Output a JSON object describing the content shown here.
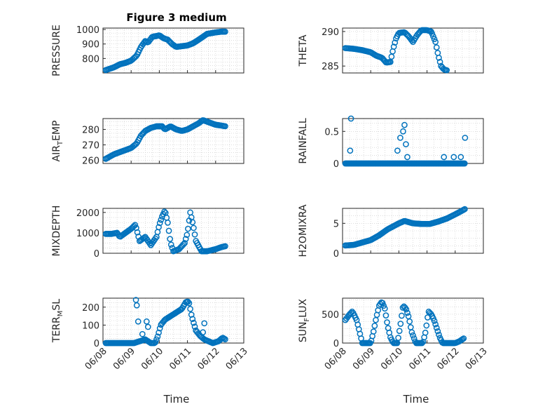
{
  "figure": {
    "title": "Figure 3 medium"
  },
  "colors": {
    "marker": "#0072bd",
    "axes": "#262626",
    "grid": "#c8c8c8"
  },
  "chart_data": [
    {
      "type": "scatter",
      "title": "Figure 3 medium",
      "ylabel": "PRESSURE",
      "ylabel_sub": "",
      "ylim": [
        700,
        1010
      ],
      "yticks": [
        800,
        900,
        1000
      ],
      "ytick_labels": [
        "800",
        "900",
        "1000"
      ],
      "xlim": [
        0,
        5
      ],
      "xticks": [
        0,
        1,
        2,
        3,
        4,
        5
      ],
      "xtick_labels": [
        "06/08",
        "06/09",
        "06/10",
        "06/11",
        "06/12",
        "06/13"
      ],
      "xlabel": "",
      "grid": true,
      "anchors": [
        [
          0.1,
          720
        ],
        [
          0.4,
          740
        ],
        [
          0.6,
          760
        ],
        [
          0.8,
          770
        ],
        [
          1.0,
          785
        ],
        [
          1.2,
          820
        ],
        [
          1.35,
          880
        ],
        [
          1.5,
          920
        ],
        [
          1.6,
          910
        ],
        [
          1.75,
          950
        ],
        [
          1.9,
          955
        ],
        [
          2.0,
          960
        ],
        [
          2.15,
          940
        ],
        [
          2.3,
          930
        ],
        [
          2.45,
          900
        ],
        [
          2.6,
          880
        ],
        [
          2.8,
          885
        ],
        [
          3.0,
          890
        ],
        [
          3.2,
          905
        ],
        [
          3.4,
          930
        ],
        [
          3.55,
          950
        ],
        [
          3.7,
          970
        ],
        [
          3.85,
          975
        ],
        [
          4.0,
          980
        ],
        [
          4.2,
          985
        ],
        [
          4.35,
          985
        ]
      ]
    },
    {
      "type": "scatter",
      "title": "",
      "ylabel": "THETA",
      "ylabel_sub": "",
      "ylim": [
        284,
        290.5
      ],
      "yticks": [
        285,
        290
      ],
      "ytick_labels": [
        "285",
        "290"
      ],
      "xlim": [
        0,
        5
      ],
      "xticks": [
        0,
        1,
        2,
        3,
        4,
        5
      ],
      "xtick_labels": [
        "06/08",
        "06/09",
        "06/10",
        "06/11",
        "06/12",
        "06/13"
      ],
      "xlabel": "",
      "grid": true,
      "anchors": [
        [
          0.1,
          287.6
        ],
        [
          0.4,
          287.5
        ],
        [
          0.7,
          287.3
        ],
        [
          1.0,
          287.0
        ],
        [
          1.2,
          286.5
        ],
        [
          1.4,
          286.2
        ],
        [
          1.55,
          285.5
        ],
        [
          1.7,
          285.6
        ],
        [
          1.8,
          287.5
        ],
        [
          1.9,
          289.0
        ],
        [
          2.0,
          289.8
        ],
        [
          2.2,
          289.9
        ],
        [
          2.35,
          289.3
        ],
        [
          2.5,
          288.5
        ],
        [
          2.65,
          289.5
        ],
        [
          2.8,
          290.2
        ],
        [
          3.0,
          290.2
        ],
        [
          3.15,
          290.0
        ],
        [
          3.3,
          288.5
        ],
        [
          3.4,
          286.5
        ],
        [
          3.5,
          285.0
        ],
        [
          3.6,
          284.5
        ],
        [
          3.7,
          284.4
        ]
      ]
    },
    {
      "type": "scatter",
      "title": "",
      "ylabel": "AIR",
      "ylabel_sub": "T",
      "ylabel_rest": "EMP",
      "ylim": [
        258,
        287
      ],
      "yticks": [
        260,
        270,
        280
      ],
      "ytick_labels": [
        "260",
        "270",
        "280"
      ],
      "xlim": [
        0,
        5
      ],
      "xticks": [
        0,
        1,
        2,
        3,
        4,
        5
      ],
      "xtick_labels": [
        "06/08",
        "06/09",
        "06/10",
        "06/11",
        "06/12",
        "06/13"
      ],
      "xlabel": "",
      "grid": true,
      "anchors": [
        [
          0.1,
          261
        ],
        [
          0.4,
          264
        ],
        [
          0.7,
          266
        ],
        [
          1.0,
          268
        ],
        [
          1.2,
          271
        ],
        [
          1.35,
          276
        ],
        [
          1.5,
          279
        ],
        [
          1.7,
          281
        ],
        [
          1.9,
          282
        ],
        [
          2.1,
          282
        ],
        [
          2.2,
          280
        ],
        [
          2.4,
          282
        ],
        [
          2.6,
          280
        ],
        [
          2.8,
          279
        ],
        [
          3.0,
          280
        ],
        [
          3.2,
          282
        ],
        [
          3.4,
          284
        ],
        [
          3.55,
          286
        ],
        [
          3.7,
          285
        ],
        [
          3.85,
          284
        ],
        [
          4.0,
          283
        ],
        [
          4.2,
          282.5
        ],
        [
          4.35,
          282
        ]
      ]
    },
    {
      "type": "scatter",
      "title": "",
      "ylabel": "RAINFALL",
      "ylabel_sub": "",
      "ylim": [
        0,
        0.7
      ],
      "yticks": [
        0,
        0.5
      ],
      "ytick_labels": [
        "0",
        "0.5"
      ],
      "xlim": [
        0,
        5
      ],
      "xticks": [
        0,
        1,
        2,
        3,
        4,
        5
      ],
      "xtick_labels": [
        "06/08",
        "06/09",
        "06/10",
        "06/11",
        "06/12",
        "06/13"
      ],
      "xlabel": "",
      "grid": true,
      "spikes": [
        [
          0.3,
          0.7
        ],
        [
          0.27,
          0.2
        ],
        [
          1.95,
          0.2
        ],
        [
          2.05,
          0.4
        ],
        [
          2.15,
          0.5
        ],
        [
          2.2,
          0.6
        ],
        [
          2.25,
          0.3
        ],
        [
          2.3,
          0.1
        ],
        [
          3.6,
          0.1
        ],
        [
          3.95,
          0.1
        ],
        [
          4.2,
          0.1
        ],
        [
          4.35,
          0.4
        ]
      ]
    },
    {
      "type": "scatter",
      "title": "",
      "ylabel": "MIXDEPTH",
      "ylabel_sub": "",
      "ylim": [
        0,
        2200
      ],
      "yticks": [
        0,
        1000,
        2000
      ],
      "ytick_labels": [
        "0",
        "1000",
        "2000"
      ],
      "xlim": [
        0,
        5
      ],
      "xticks": [
        0,
        1,
        2,
        3,
        4,
        5
      ],
      "xtick_labels": [
        "06/08",
        "06/09",
        "06/10",
        "06/11",
        "06/12",
        "06/13"
      ],
      "xlabel": "",
      "grid": true,
      "anchors": [
        [
          0.1,
          950
        ],
        [
          0.3,
          950
        ],
        [
          0.5,
          1000
        ],
        [
          0.6,
          800
        ],
        [
          0.8,
          1000
        ],
        [
          1.0,
          1200
        ],
        [
          1.15,
          1400
        ],
        [
          1.3,
          600
        ],
        [
          1.5,
          800
        ],
        [
          1.7,
          400
        ],
        [
          1.9,
          800
        ],
        [
          2.0,
          1400
        ],
        [
          2.1,
          1800
        ],
        [
          2.2,
          2100
        ],
        [
          2.3,
          1500
        ],
        [
          2.4,
          500
        ],
        [
          2.5,
          100
        ],
        [
          2.7,
          200
        ],
        [
          2.9,
          500
        ],
        [
          3.0,
          1000
        ],
        [
          3.1,
          2000
        ],
        [
          3.2,
          1400
        ],
        [
          3.3,
          600
        ],
        [
          3.5,
          100
        ],
        [
          3.7,
          100
        ],
        [
          4.0,
          200
        ],
        [
          4.2,
          300
        ],
        [
          4.35,
          350
        ]
      ]
    },
    {
      "type": "scatter",
      "title": "",
      "ylabel": "H2OMIXRA",
      "ylabel_sub": "",
      "ylim": [
        0,
        7.5
      ],
      "yticks": [
        0,
        5
      ],
      "ytick_labels": [
        "0",
        "5"
      ],
      "xlim": [
        0,
        5
      ],
      "xticks": [
        0,
        1,
        2,
        3,
        4,
        5
      ],
      "xtick_labels": [
        "06/08",
        "06/09",
        "06/10",
        "06/11",
        "06/12",
        "06/13"
      ],
      "xlabel": "",
      "grid": true,
      "anchors": [
        [
          0.1,
          1.3
        ],
        [
          0.4,
          1.4
        ],
        [
          0.7,
          1.8
        ],
        [
          1.0,
          2.2
        ],
        [
          1.3,
          3.0
        ],
        [
          1.6,
          4.0
        ],
        [
          1.8,
          4.5
        ],
        [
          2.0,
          5.0
        ],
        [
          2.2,
          5.4
        ],
        [
          2.5,
          5.0
        ],
        [
          2.8,
          4.9
        ],
        [
          3.1,
          4.9
        ],
        [
          3.4,
          5.3
        ],
        [
          3.7,
          5.8
        ],
        [
          4.0,
          6.5
        ],
        [
          4.2,
          7.0
        ],
        [
          4.35,
          7.4
        ]
      ]
    },
    {
      "type": "scatter",
      "title": "",
      "ylabel": "TERR",
      "ylabel_sub": "M",
      "ylabel_rest": "SL",
      "ylim": [
        0,
        250
      ],
      "yticks": [
        0,
        100,
        200
      ],
      "ytick_labels": [
        "0",
        "100",
        "200"
      ],
      "xlim": [
        0,
        5
      ],
      "xticks": [
        0,
        1,
        2,
        3,
        4,
        5
      ],
      "xtick_labels": [
        "06/08",
        "06/09",
        "06/10",
        "06/11",
        "06/12",
        "06/13"
      ],
      "xlabel": "Time",
      "grid": true,
      "anchors": [
        [
          0.1,
          0
        ],
        [
          0.6,
          0
        ],
        [
          1.1,
          0
        ],
        [
          1.3,
          10
        ],
        [
          1.5,
          20
        ],
        [
          1.7,
          0
        ],
        [
          1.85,
          0
        ],
        [
          1.95,
          40
        ],
        [
          2.05,
          100
        ],
        [
          2.2,
          130
        ],
        [
          2.4,
          150
        ],
        [
          2.6,
          170
        ],
        [
          2.8,
          190
        ],
        [
          2.95,
          230
        ],
        [
          3.05,
          230
        ],
        [
          3.15,
          150
        ],
        [
          3.3,
          70
        ],
        [
          3.45,
          40
        ],
        [
          3.6,
          20
        ],
        [
          3.75,
          10
        ],
        [
          3.9,
          0
        ],
        [
          4.1,
          10
        ],
        [
          4.25,
          30
        ],
        [
          4.35,
          20
        ]
      ],
      "extras": [
        [
          1.17,
          240
        ],
        [
          1.2,
          210
        ],
        [
          1.25,
          120
        ],
        [
          1.4,
          50
        ],
        [
          1.55,
          120
        ],
        [
          1.6,
          90
        ],
        [
          3.6,
          110
        ],
        [
          3.55,
          60
        ]
      ]
    },
    {
      "type": "scatter",
      "title": "",
      "ylabel": "SUN",
      "ylabel_sub": "F",
      "ylabel_rest": "LUX",
      "ylim": [
        0,
        780
      ],
      "yticks": [
        0,
        500
      ],
      "ytick_labels": [
        "0",
        "500"
      ],
      "xlim": [
        0,
        5
      ],
      "xticks": [
        0,
        1,
        2,
        3,
        4,
        5
      ],
      "xtick_labels": [
        "06/08",
        "06/09",
        "06/10",
        "06/11",
        "06/12",
        "06/13"
      ],
      "xlabel": "Time",
      "grid": true,
      "anchors": [
        [
          0.1,
          400
        ],
        [
          0.25,
          500
        ],
        [
          0.35,
          550
        ],
        [
          0.5,
          400
        ],
        [
          0.6,
          200
        ],
        [
          0.7,
          0
        ],
        [
          0.9,
          0
        ],
        [
          1.0,
          0
        ],
        [
          1.1,
          200
        ],
        [
          1.2,
          450
        ],
        [
          1.3,
          650
        ],
        [
          1.4,
          720
        ],
        [
          1.5,
          600
        ],
        [
          1.6,
          300
        ],
        [
          1.7,
          100
        ],
        [
          1.8,
          0
        ],
        [
          1.95,
          0
        ],
        [
          2.05,
          300
        ],
        [
          2.15,
          650
        ],
        [
          2.25,
          600
        ],
        [
          2.35,
          450
        ],
        [
          2.45,
          200
        ],
        [
          2.6,
          0
        ],
        [
          2.85,
          0
        ],
        [
          2.95,
          200
        ],
        [
          3.05,
          550
        ],
        [
          3.15,
          500
        ],
        [
          3.25,
          400
        ],
        [
          3.35,
          250
        ],
        [
          3.45,
          100
        ],
        [
          3.55,
          0
        ],
        [
          3.8,
          0
        ],
        [
          4.0,
          0
        ],
        [
          4.15,
          30
        ],
        [
          4.3,
          80
        ]
      ]
    }
  ]
}
